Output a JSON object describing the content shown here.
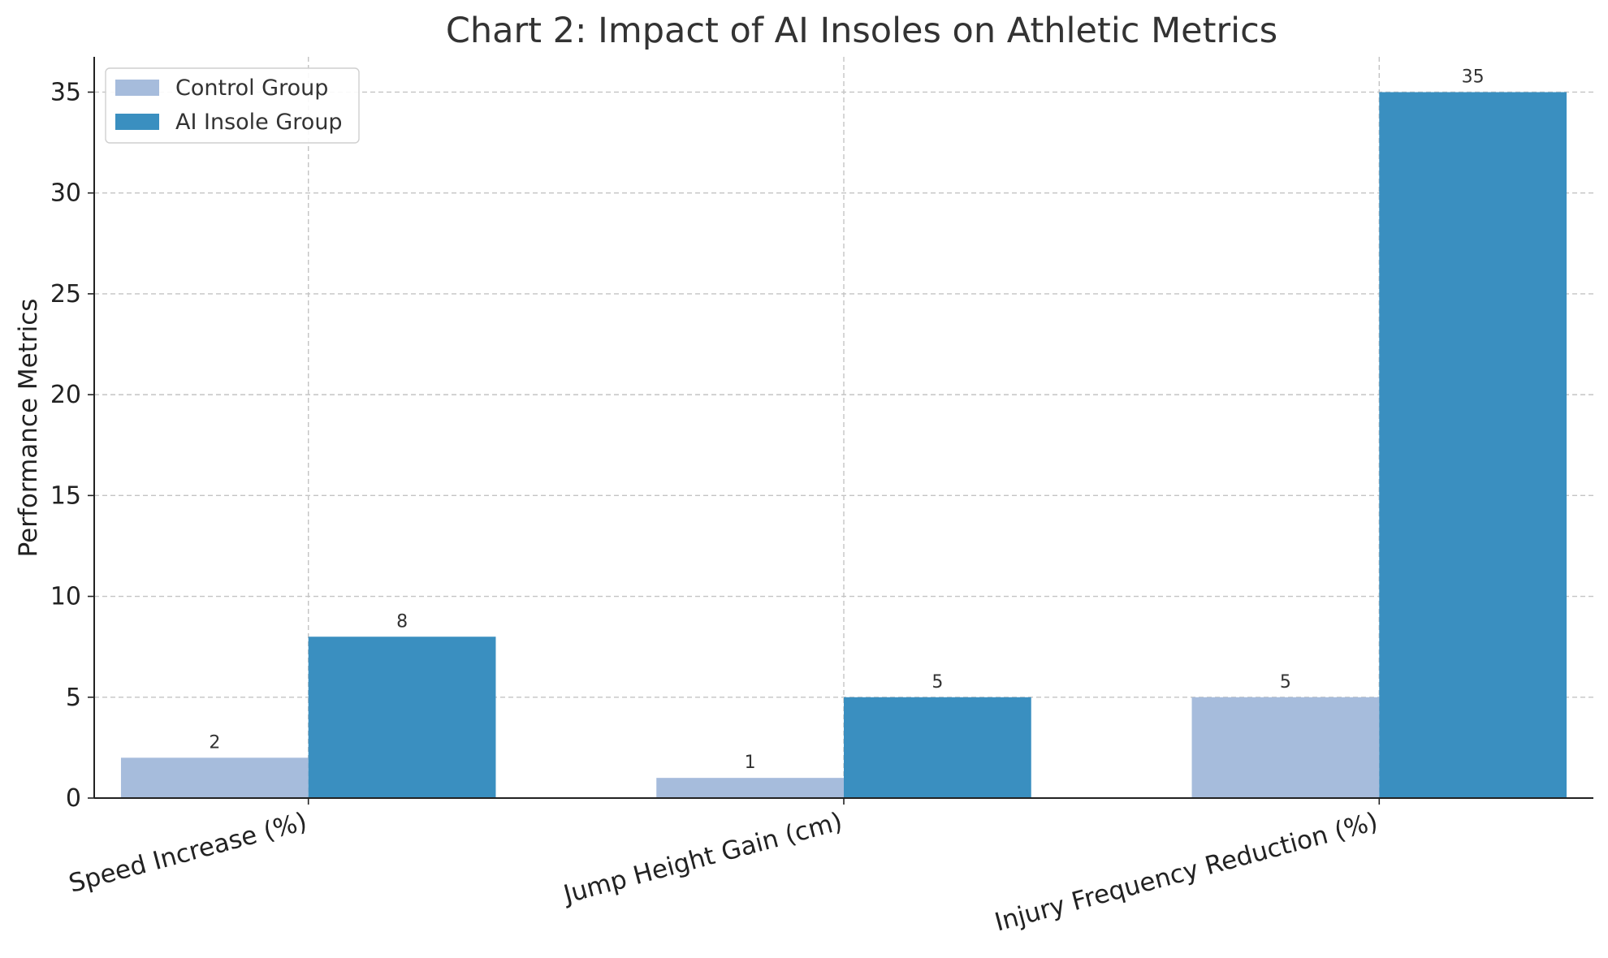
{
  "chart_data": {
    "type": "bar",
    "title": "Chart 2: Impact of AI Insoles on Athletic Metrics",
    "xlabel": "",
    "ylabel": "Performance Metrics",
    "categories": [
      "Speed Increase (%)",
      "Jump Height Gain (cm)",
      "Injury Frequency Reduction (%)"
    ],
    "series": [
      {
        "name": "Control Group",
        "values": [
          2,
          1,
          5
        ],
        "color": "#a6bcdc"
      },
      {
        "name": "AI Insole Group",
        "values": [
          8,
          5,
          35
        ],
        "color": "#3a8fc0"
      }
    ],
    "ylim": [
      0,
      36.75
    ],
    "yticks": [
      0,
      5,
      10,
      15,
      20,
      25,
      30,
      35
    ],
    "grid": true,
    "legend_position": "top-left",
    "data_labels": true,
    "xtick_rotation_deg": -15
  }
}
